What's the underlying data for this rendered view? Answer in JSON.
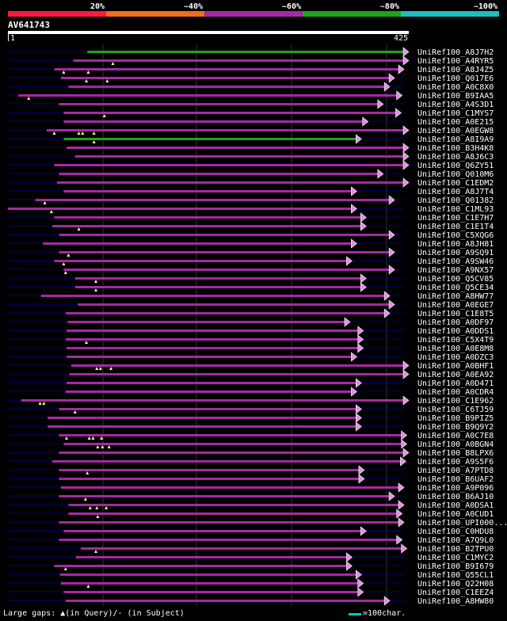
{
  "score_legend": {
    "labels": [
      "20%",
      "~40%",
      "~60%",
      "~80%",
      "~100%"
    ],
    "colors": [
      "#ff1b39",
      "#f06e1c",
      "#a529a4",
      "#1ca41c",
      "#1cbfbf"
    ]
  },
  "query": {
    "name": "AV641743",
    "start": "1",
    "end": "425",
    "length": 425
  },
  "row_colors": {
    "alignment": "#a529a4",
    "best": "#1ca41c",
    "gap": "#000080",
    "marker": "#ffff88"
  },
  "hits": [
    {
      "name": "UniRef100_A8J7H2",
      "start": 85,
      "end": 425,
      "best": true,
      "marks": []
    },
    {
      "name": "UniRef100_A4RYR5",
      "start": 70,
      "end": 425,
      "marks": [
        112
      ]
    },
    {
      "name": "UniRef100_A8J4Z5",
      "start": 50,
      "end": 420,
      "marks": [
        60,
        86
      ]
    },
    {
      "name": "UniRef100_Q017E6",
      "start": 57,
      "end": 410,
      "marks": [
        84,
        106
      ]
    },
    {
      "name": "UniRef100_A0C8X0",
      "start": 65,
      "end": 405,
      "marks": []
    },
    {
      "name": "UniRef100_B9IAA5",
      "start": 12,
      "end": 418,
      "marks": [
        23
      ]
    },
    {
      "name": "UniRef100_A4S3D1",
      "start": 55,
      "end": 398,
      "marks": []
    },
    {
      "name": "UniRef100_C1MYS7",
      "start": 60,
      "end": 417,
      "marks": [
        103
      ]
    },
    {
      "name": "UniRef100_A0E215",
      "start": 60,
      "end": 382,
      "marks": []
    },
    {
      "name": "UniRef100_A0EGW8",
      "start": 42,
      "end": 425,
      "marks": [
        50,
        76,
        80,
        92
      ]
    },
    {
      "name": "UniRef100_A8I9A9",
      "start": 60,
      "end": 375,
      "best": true,
      "marks": [
        92
      ]
    },
    {
      "name": "UniRef100_B3H4K8",
      "start": 63,
      "end": 425,
      "marks": []
    },
    {
      "name": "UniRef100_A8J6C3",
      "start": 72,
      "end": 425,
      "marks": []
    },
    {
      "name": "UniRef100_Q6ZY51",
      "start": 50,
      "end": 425,
      "marks": []
    },
    {
      "name": "UniRef100_Q010M6",
      "start": 55,
      "end": 398,
      "marks": []
    },
    {
      "name": "UniRef100_C1EDM2",
      "start": 53,
      "end": 425,
      "marks": []
    },
    {
      "name": "UniRef100_A8J7T4",
      "start": 60,
      "end": 370,
      "marks": []
    },
    {
      "name": "UniRef100_Q01382",
      "start": 30,
      "end": 410,
      "marks": [
        40
      ]
    },
    {
      "name": "UniRef100_C1ML93",
      "start": 1,
      "end": 370,
      "marks": [
        47
      ]
    },
    {
      "name": "UniRef100_C1E7H7",
      "start": 50,
      "end": 380,
      "marks": []
    },
    {
      "name": "UniRef100_C1E1T4",
      "start": 48,
      "end": 380,
      "marks": [
        76
      ]
    },
    {
      "name": "UniRef100_C5XQG6",
      "start": 55,
      "end": 410,
      "marks": []
    },
    {
      "name": "UniRef100_A8JH81",
      "start": 38,
      "end": 370,
      "marks": []
    },
    {
      "name": "UniRef100_A9SQ91",
      "start": 55,
      "end": 410,
      "marks": [
        65
      ]
    },
    {
      "name": "UniRef100_A9SW46",
      "start": 50,
      "end": 365,
      "marks": [
        60
      ]
    },
    {
      "name": "UniRef100_A9NX57",
      "start": 60,
      "end": 410,
      "marks": [
        62
      ]
    },
    {
      "name": "UniRef100_Q5CV85",
      "start": 72,
      "end": 380,
      "marks": [
        94
      ]
    },
    {
      "name": "UniRef100_Q5CE34",
      "start": 72,
      "end": 380,
      "marks": [
        94
      ]
    },
    {
      "name": "UniRef100_A8HW77",
      "start": 36,
      "end": 405,
      "marks": []
    },
    {
      "name": "UniRef100_A0EGE7",
      "start": 75,
      "end": 410,
      "marks": []
    },
    {
      "name": "UniRef100_C1E8T5",
      "start": 62,
      "end": 405,
      "marks": []
    },
    {
      "name": "UniRef100_A0DF97",
      "start": 64,
      "end": 363,
      "marks": []
    },
    {
      "name": "UniRef100_A0DDS1",
      "start": 63,
      "end": 377,
      "marks": []
    },
    {
      "name": "UniRef100_C5X4T9",
      "start": 62,
      "end": 377,
      "marks": [
        84
      ]
    },
    {
      "name": "UniRef100_A0E8M8",
      "start": 63,
      "end": 377,
      "marks": []
    },
    {
      "name": "UniRef100_A0DZC3",
      "start": 63,
      "end": 370,
      "marks": []
    },
    {
      "name": "UniRef100_A0BHF1",
      "start": 68,
      "end": 425,
      "marks": [
        95,
        99,
        110
      ]
    },
    {
      "name": "UniRef100_A0EA92",
      "start": 66,
      "end": 425,
      "marks": []
    },
    {
      "name": "UniRef100_A0D471",
      "start": 63,
      "end": 375,
      "marks": []
    },
    {
      "name": "UniRef100_A0CDR4",
      "start": 62,
      "end": 370,
      "marks": []
    },
    {
      "name": "UniRef100_C1E962",
      "start": 15,
      "end": 425,
      "marks": [
        35,
        39
      ]
    },
    {
      "name": "UniRef100_C6TJ59",
      "start": 55,
      "end": 375,
      "marks": [
        72
      ]
    },
    {
      "name": "UniRef100_B9PIZ5",
      "start": 43,
      "end": 375,
      "marks": []
    },
    {
      "name": "UniRef100_B9Q9Y2",
      "start": 43,
      "end": 375,
      "marks": []
    },
    {
      "name": "UniRef100_A0C7E8",
      "start": 55,
      "end": 423,
      "marks": [
        63,
        87,
        91,
        100
      ]
    },
    {
      "name": "UniRef100_A0BGN4",
      "start": 60,
      "end": 423,
      "marks": [
        96,
        101,
        108
      ]
    },
    {
      "name": "UniRef100_B8LPX6",
      "start": 55,
      "end": 425,
      "marks": []
    },
    {
      "name": "UniRef100_A9S5F6",
      "start": 48,
      "end": 422,
      "marks": []
    },
    {
      "name": "UniRef100_A7PTD8",
      "start": 55,
      "end": 378,
      "marks": [
        85
      ]
    },
    {
      "name": "UniRef100_B6UAF2",
      "start": 55,
      "end": 378,
      "marks": []
    },
    {
      "name": "UniRef100_A9P096",
      "start": 57,
      "end": 420,
      "marks": []
    },
    {
      "name": "UniRef100_B6AJ10",
      "start": 55,
      "end": 410,
      "marks": [
        83
      ]
    },
    {
      "name": "UniRef100_A0DSA1",
      "start": 65,
      "end": 420,
      "marks": [
        88,
        95,
        105
      ]
    },
    {
      "name": "UniRef100_A0CUD1",
      "start": 65,
      "end": 418,
      "marks": [
        96
      ]
    },
    {
      "name": "UniRef100_UPI000...",
      "start": 55,
      "end": 420,
      "marks": []
    },
    {
      "name": "UniRef100_C0HDU8",
      "start": 60,
      "end": 380,
      "marks": []
    },
    {
      "name": "UniRef100_A7Q9L0",
      "start": 55,
      "end": 418,
      "marks": []
    },
    {
      "name": "UniRef100_B2TPU0",
      "start": 78,
      "end": 423,
      "marks": [
        94
      ]
    },
    {
      "name": "UniRef100_C1MYC2",
      "start": 73,
      "end": 365,
      "marks": []
    },
    {
      "name": "UniRef100_B9I679",
      "start": 50,
      "end": 365,
      "marks": [
        62
      ]
    },
    {
      "name": "UniRef100_Q55CL1",
      "start": 56,
      "end": 375,
      "marks": []
    },
    {
      "name": "UniRef100_Q22H08",
      "start": 57,
      "end": 377,
      "marks": [
        86
      ]
    },
    {
      "name": "UniRef100_C1EEZ4",
      "start": 60,
      "end": 377,
      "marks": []
    },
    {
      "name": "UniRef100_A8HW80",
      "start": 62,
      "end": 405,
      "marks": []
    }
  ],
  "footer": {
    "legend": "Large gaps: ▲(in Query)/- (in Subject)",
    "scale": "=100char."
  }
}
